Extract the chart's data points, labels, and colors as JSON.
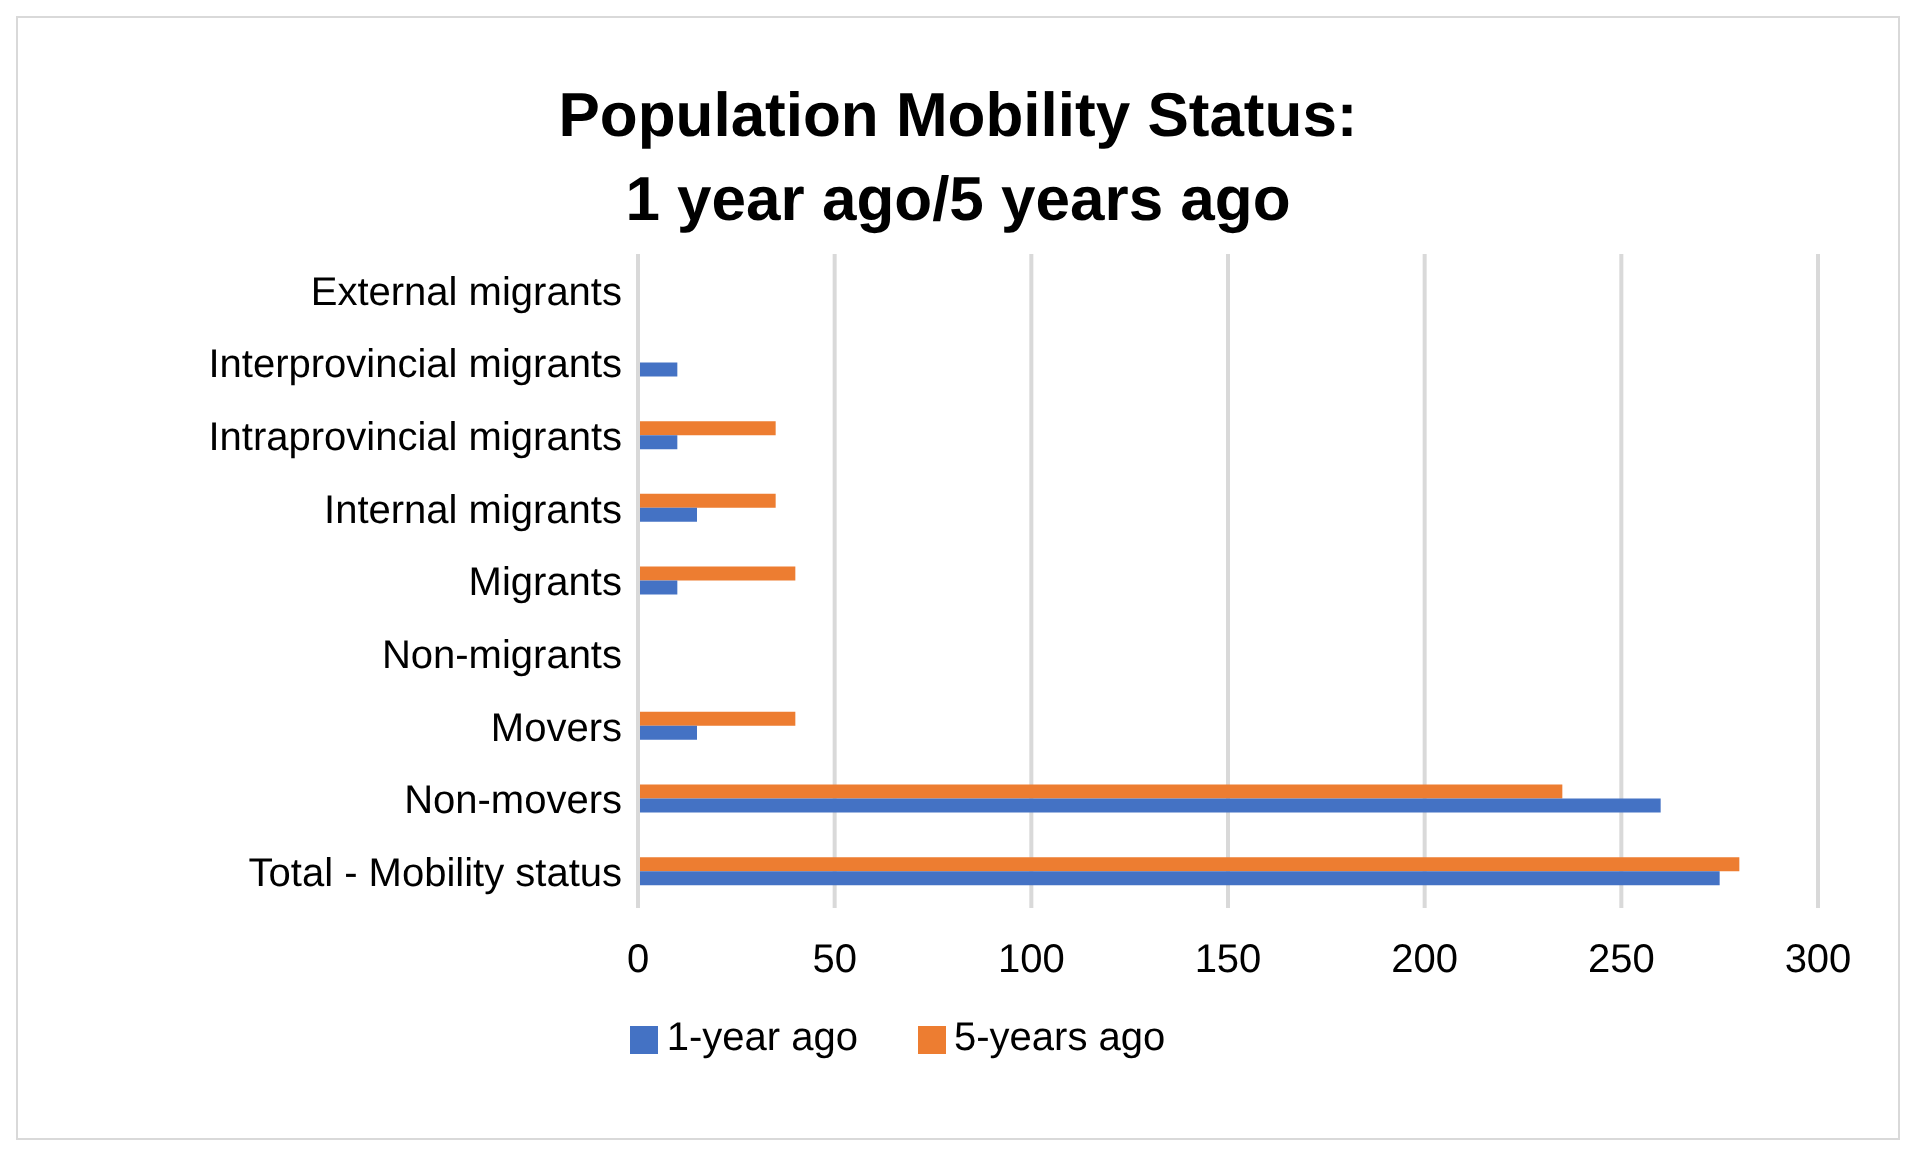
{
  "chart_data": {
    "type": "bar",
    "orientation": "horizontal",
    "title": "Population Mobility Status:\n1 year ago/5 years ago",
    "categories": [
      "External migrants",
      "Interprovincial migrants",
      "Intraprovincial migrants",
      "Internal migrants",
      "Migrants",
      "Non-migrants",
      "Movers",
      "Non-movers",
      "Total - Mobility status"
    ],
    "series": [
      {
        "name": "5-years ago",
        "color": "#ed7d31",
        "values": [
          null,
          null,
          35,
          35,
          40,
          null,
          40,
          235,
          280
        ]
      },
      {
        "name": "1-year ago",
        "color": "#4472c4",
        "values": [
          null,
          10,
          10,
          15,
          10,
          null,
          15,
          260,
          275
        ]
      }
    ],
    "xlim": [
      0,
      300
    ],
    "xticks": [
      0,
      50,
      100,
      150,
      200,
      250,
      300
    ],
    "grid": "x",
    "legend": "bottom"
  }
}
